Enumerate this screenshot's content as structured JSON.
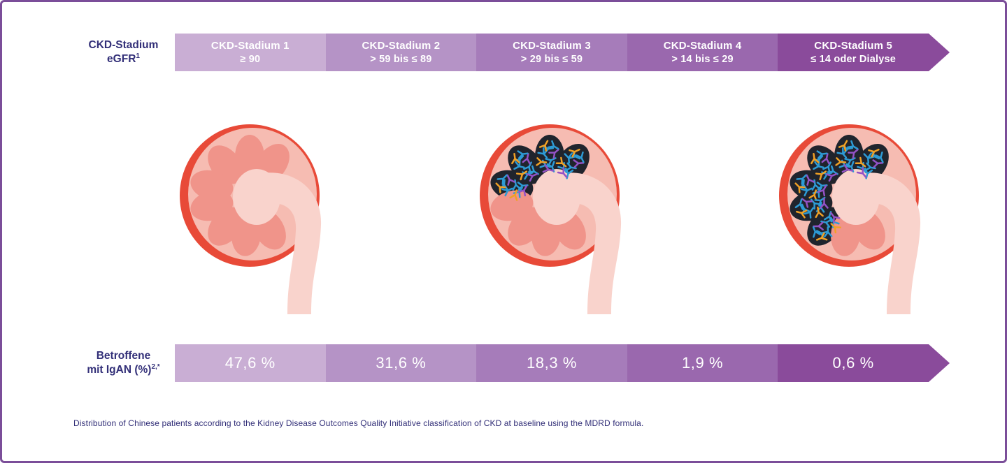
{
  "stage_colors": [
    "#c9aed4",
    "#b593c6",
    "#a67cba",
    "#9a68ae",
    "#8a4b9b"
  ],
  "palette": {
    "frame_border": "#7b4e99",
    "label_text": "#322f78",
    "band_text": "#ffffff"
  },
  "header_row": {
    "label_line1": "CKD-Stadium",
    "label_line2": "eGFR",
    "label_sup": "1",
    "stages": [
      {
        "title": "CKD-Stadium 1",
        "range": "≥ 90"
      },
      {
        "title": "CKD-Stadium 2",
        "range": "> 59 bis ≤ 89"
      },
      {
        "title": "CKD-Stadium 3",
        "range": "> 29 bis ≤ 59"
      },
      {
        "title": "CKD-Stadium 4",
        "range": "> 14 bis ≤ 29"
      },
      {
        "title": "CKD-Stadium 5",
        "range": "≤ 14 oder Dialyse"
      }
    ]
  },
  "percent_row": {
    "label_line1": "Betroffene",
    "label_line2": "mit IgAN (%)",
    "label_sup": "2,*",
    "values": [
      "47,6 %",
      "31,6 %",
      "18,3 %",
      "1,9 %",
      "0,6 %"
    ]
  },
  "kidneys": [
    {
      "name": "healthy-kidney",
      "affected_pyramids": 0
    },
    {
      "name": "moderately-affected-kidney",
      "affected_pyramids": 4
    },
    {
      "name": "severely-affected-kidney",
      "affected_pyramids": 6
    }
  ],
  "kidney_colors": {
    "outline": "#e84a38",
    "cortex": "#f6bcb2",
    "pyramid": "#f0948a",
    "pelvis": "#f9d3cc",
    "diseased": "#20242d",
    "molecule_blue": "#2d9bd5",
    "molecule_orange": "#f0a125",
    "molecule_purple": "#9452c6"
  },
  "footnote": "Distribution of Chinese patients according to the Kidney Disease Outcomes Quality Initiative classification of CKD at baseline using the MDRD formula.",
  "chart_data": {
    "type": "bar",
    "title": "Betroffene mit IgAN (%) nach CKD-Stadium",
    "categories": [
      "CKD-Stadium 1 (eGFR ≥ 90)",
      "CKD-Stadium 2 (eGFR > 59 bis ≤ 89)",
      "CKD-Stadium 3 (eGFR > 29 bis ≤ 59)",
      "CKD-Stadium 4 (eGFR > 14 bis ≤ 29)",
      "CKD-Stadium 5 (eGFR ≤ 14 oder Dialyse)"
    ],
    "values": [
      47.6,
      31.6,
      18.3,
      1.9,
      0.6
    ],
    "unit": "%",
    "legend_position": "none",
    "grid": false
  }
}
